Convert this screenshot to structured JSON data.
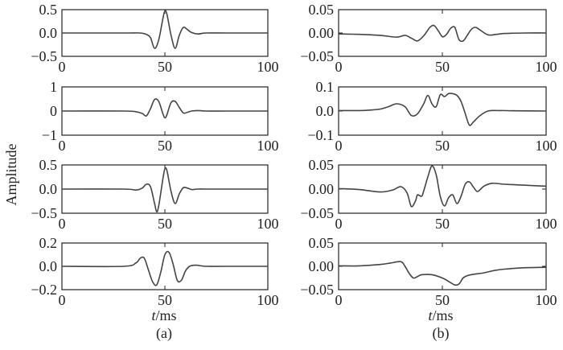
{
  "figure": {
    "ylabel": "Amplitude",
    "xlabel_italic": "t",
    "xlabel_rest": "/ms",
    "column_labels": [
      "(a)",
      "(b)"
    ]
  },
  "chart_data": [
    {
      "type": "line",
      "column": "a",
      "row": 1,
      "xlim": [
        0,
        100
      ],
      "ylim": [
        -0.5,
        0.5
      ],
      "xticks": [
        0,
        50,
        100
      ],
      "xtick_labels": [
        "0",
        "50",
        "100"
      ],
      "yticks": [
        0.5,
        0.0,
        -0.5
      ],
      "ytick_labels": [
        "0.5",
        "0.0",
        "−0.5"
      ],
      "series": [
        {
          "x": [
            0,
            30,
            38,
            41,
            43,
            45,
            47,
            49,
            50,
            51,
            53,
            55,
            57,
            59,
            61,
            63,
            66,
            70,
            80,
            100
          ],
          "y": [
            0,
            0,
            0.0,
            -0.03,
            -0.1,
            -0.33,
            -0.15,
            0.3,
            0.47,
            0.4,
            -0.05,
            -0.33,
            -0.05,
            0.12,
            0.07,
            0.01,
            -0.02,
            0,
            0,
            0
          ]
        }
      ]
    },
    {
      "type": "line",
      "column": "b",
      "row": 1,
      "xlim": [
        0,
        100
      ],
      "ylim": [
        -0.05,
        0.05
      ],
      "xticks": [
        0,
        50,
        100
      ],
      "xtick_labels": [
        "0",
        "50",
        "100"
      ],
      "yticks": [
        0.05,
        0.0,
        -0.05
      ],
      "ytick_labels": [
        "0.05",
        "0.00",
        "−0.05"
      ],
      "series": [
        {
          "x": [
            0,
            10,
            20,
            28,
            32,
            35,
            38,
            41,
            44,
            46,
            48,
            50,
            52,
            54,
            56,
            58,
            60,
            62,
            64,
            66,
            68,
            72,
            76,
            80,
            90,
            100
          ],
          "y": [
            -0.002,
            -0.003,
            -0.005,
            -0.009,
            -0.005,
            -0.011,
            -0.017,
            -0.006,
            0.012,
            0.016,
            0.005,
            -0.008,
            -0.003,
            0.01,
            0.012,
            -0.014,
            -0.017,
            -0.005,
            0.008,
            0.012,
            0.007,
            -0.004,
            -0.003,
            -0.001,
            0,
            0
          ]
        }
      ]
    },
    {
      "type": "line",
      "column": "a",
      "row": 2,
      "xlim": [
        0,
        100
      ],
      "ylim": [
        -1,
        1
      ],
      "xticks": [
        0,
        50,
        100
      ],
      "xtick_labels": [
        "0",
        "50",
        "100"
      ],
      "yticks": [
        1,
        0,
        -1
      ],
      "ytick_labels": [
        "1",
        "0",
        "−1"
      ],
      "series": [
        {
          "x": [
            0,
            30,
            36,
            39,
            41,
            43,
            45,
            47,
            49,
            50,
            51,
            53,
            55,
            57,
            59,
            61,
            63,
            66,
            70,
            80,
            100
          ],
          "y": [
            0,
            0,
            -0.03,
            -0.1,
            -0.2,
            0.1,
            0.48,
            0.4,
            -0.1,
            -0.28,
            -0.15,
            0.35,
            0.4,
            0.15,
            -0.08,
            -0.05,
            0.0,
            0.02,
            0,
            0,
            0
          ]
        }
      ]
    },
    {
      "type": "line",
      "column": "b",
      "row": 2,
      "xlim": [
        0,
        100
      ],
      "ylim": [
        -0.1,
        0.1
      ],
      "xticks": [
        0,
        50,
        100
      ],
      "xtick_labels": [
        "0",
        "50",
        "100"
      ],
      "yticks": [
        0.1,
        0.0,
        -0.1
      ],
      "ytick_labels": [
        "0.1",
        "0.0",
        "−0.1"
      ],
      "series": [
        {
          "x": [
            0,
            10,
            15,
            20,
            24,
            28,
            32,
            35,
            38,
            41,
            43,
            45,
            47,
            49,
            51,
            53,
            55,
            57,
            59,
            61,
            63,
            65,
            68,
            72,
            78,
            85,
            100
          ],
          "y": [
            0.002,
            0.002,
            0.004,
            0.008,
            0.018,
            0.03,
            0.018,
            -0.018,
            -0.012,
            0.03,
            0.065,
            0.03,
            0.018,
            0.068,
            0.06,
            0.072,
            0.072,
            0.065,
            0.04,
            -0.01,
            -0.058,
            -0.045,
            -0.02,
            0.0,
            0.002,
            0.001,
            0.0
          ]
        }
      ]
    },
    {
      "type": "line",
      "column": "a",
      "row": 3,
      "xlim": [
        0,
        100
      ],
      "ylim": [
        -0.5,
        0.5
      ],
      "xticks": [
        0,
        50,
        100
      ],
      "xtick_labels": [
        "0",
        "50",
        "100"
      ],
      "yticks": [
        0.5,
        0.0,
        -0.5
      ],
      "ytick_labels": [
        "0.5",
        "0.0",
        "−0.5"
      ],
      "series": [
        {
          "x": [
            0,
            30,
            36,
            39,
            41,
            43,
            45,
            46,
            47,
            49,
            50,
            51,
            53,
            55,
            57,
            59,
            61,
            63,
            66,
            70,
            80,
            100
          ],
          "y": [
            0,
            0,
            -0.02,
            0.02,
            0.1,
            0.05,
            -0.3,
            -0.47,
            -0.35,
            0.2,
            0.42,
            0.38,
            -0.05,
            -0.3,
            -0.1,
            0.03,
            0.02,
            -0.01,
            0.0,
            0,
            0,
            0
          ]
        }
      ]
    },
    {
      "type": "line",
      "column": "b",
      "row": 3,
      "xlim": [
        0,
        100
      ],
      "ylim": [
        -0.05,
        0.05
      ],
      "xticks": [
        0,
        50,
        100
      ],
      "xtick_labels": [
        "0",
        "50",
        "100"
      ],
      "yticks": [
        0.05,
        0.0,
        -0.05
      ],
      "ytick_labels": [
        "0.05",
        "0.00",
        "−0.05"
      ],
      "series": [
        {
          "x": [
            0,
            10,
            20,
            26,
            30,
            33,
            35,
            37,
            38,
            40,
            41,
            43,
            45,
            47,
            49,
            51,
            53,
            55,
            57,
            59,
            61,
            63,
            65,
            67,
            70,
            74,
            80,
            90,
            100
          ],
          "y": [
            0.001,
            -0.001,
            -0.006,
            -0.002,
            0.005,
            -0.008,
            -0.036,
            -0.025,
            -0.012,
            -0.015,
            -0.004,
            0.025,
            0.048,
            0.03,
            -0.015,
            -0.035,
            -0.018,
            -0.012,
            -0.03,
            -0.015,
            0.01,
            0.015,
            0.004,
            -0.005,
            0.006,
            0.012,
            0.01,
            0.008,
            0.006
          ]
        }
      ]
    },
    {
      "type": "line",
      "column": "a",
      "row": 4,
      "xlim": [
        0,
        100
      ],
      "ylim": [
        -0.2,
        0.2
      ],
      "xticks": [
        0,
        50,
        100
      ],
      "xtick_labels": [
        "0",
        "50",
        "100"
      ],
      "yticks": [
        0.2,
        0.0,
        -0.2
      ],
      "ytick_labels": [
        "0.2",
        "0.0",
        "−0.2"
      ],
      "series": [
        {
          "x": [
            0,
            30,
            36,
            38,
            40,
            42,
            44,
            46,
            48,
            50,
            52,
            54,
            56,
            58,
            60,
            62,
            65,
            70,
            80,
            100
          ],
          "y": [
            0,
            0,
            0.03,
            0.07,
            0.07,
            -0.03,
            -0.13,
            -0.16,
            -0.05,
            0.1,
            0.12,
            0.02,
            -0.12,
            -0.12,
            -0.04,
            0.0,
            0.01,
            0,
            0,
            0
          ]
        }
      ]
    },
    {
      "type": "line",
      "column": "b",
      "row": 4,
      "xlim": [
        0,
        100
      ],
      "ylim": [
        -0.05,
        0.05
      ],
      "xticks": [
        0,
        50,
        100
      ],
      "xtick_labels": [
        "0",
        "50",
        "100"
      ],
      "yticks": [
        0.05,
        0.0,
        -0.05
      ],
      "ytick_labels": [
        "0.05",
        "0.00",
        "−0.05"
      ],
      "series": [
        {
          "x": [
            0,
            10,
            20,
            25,
            30,
            32,
            34,
            36,
            38,
            40,
            45,
            50,
            54,
            56,
            58,
            60,
            62,
            65,
            70,
            75,
            80,
            90,
            100
          ],
          "y": [
            0.001,
            0.001,
            0.004,
            0.007,
            0.01,
            0.0,
            -0.015,
            -0.025,
            -0.022,
            -0.018,
            -0.018,
            -0.025,
            -0.035,
            -0.04,
            -0.038,
            -0.025,
            -0.02,
            -0.017,
            -0.014,
            -0.009,
            -0.006,
            -0.003,
            -0.002
          ]
        }
      ]
    }
  ]
}
